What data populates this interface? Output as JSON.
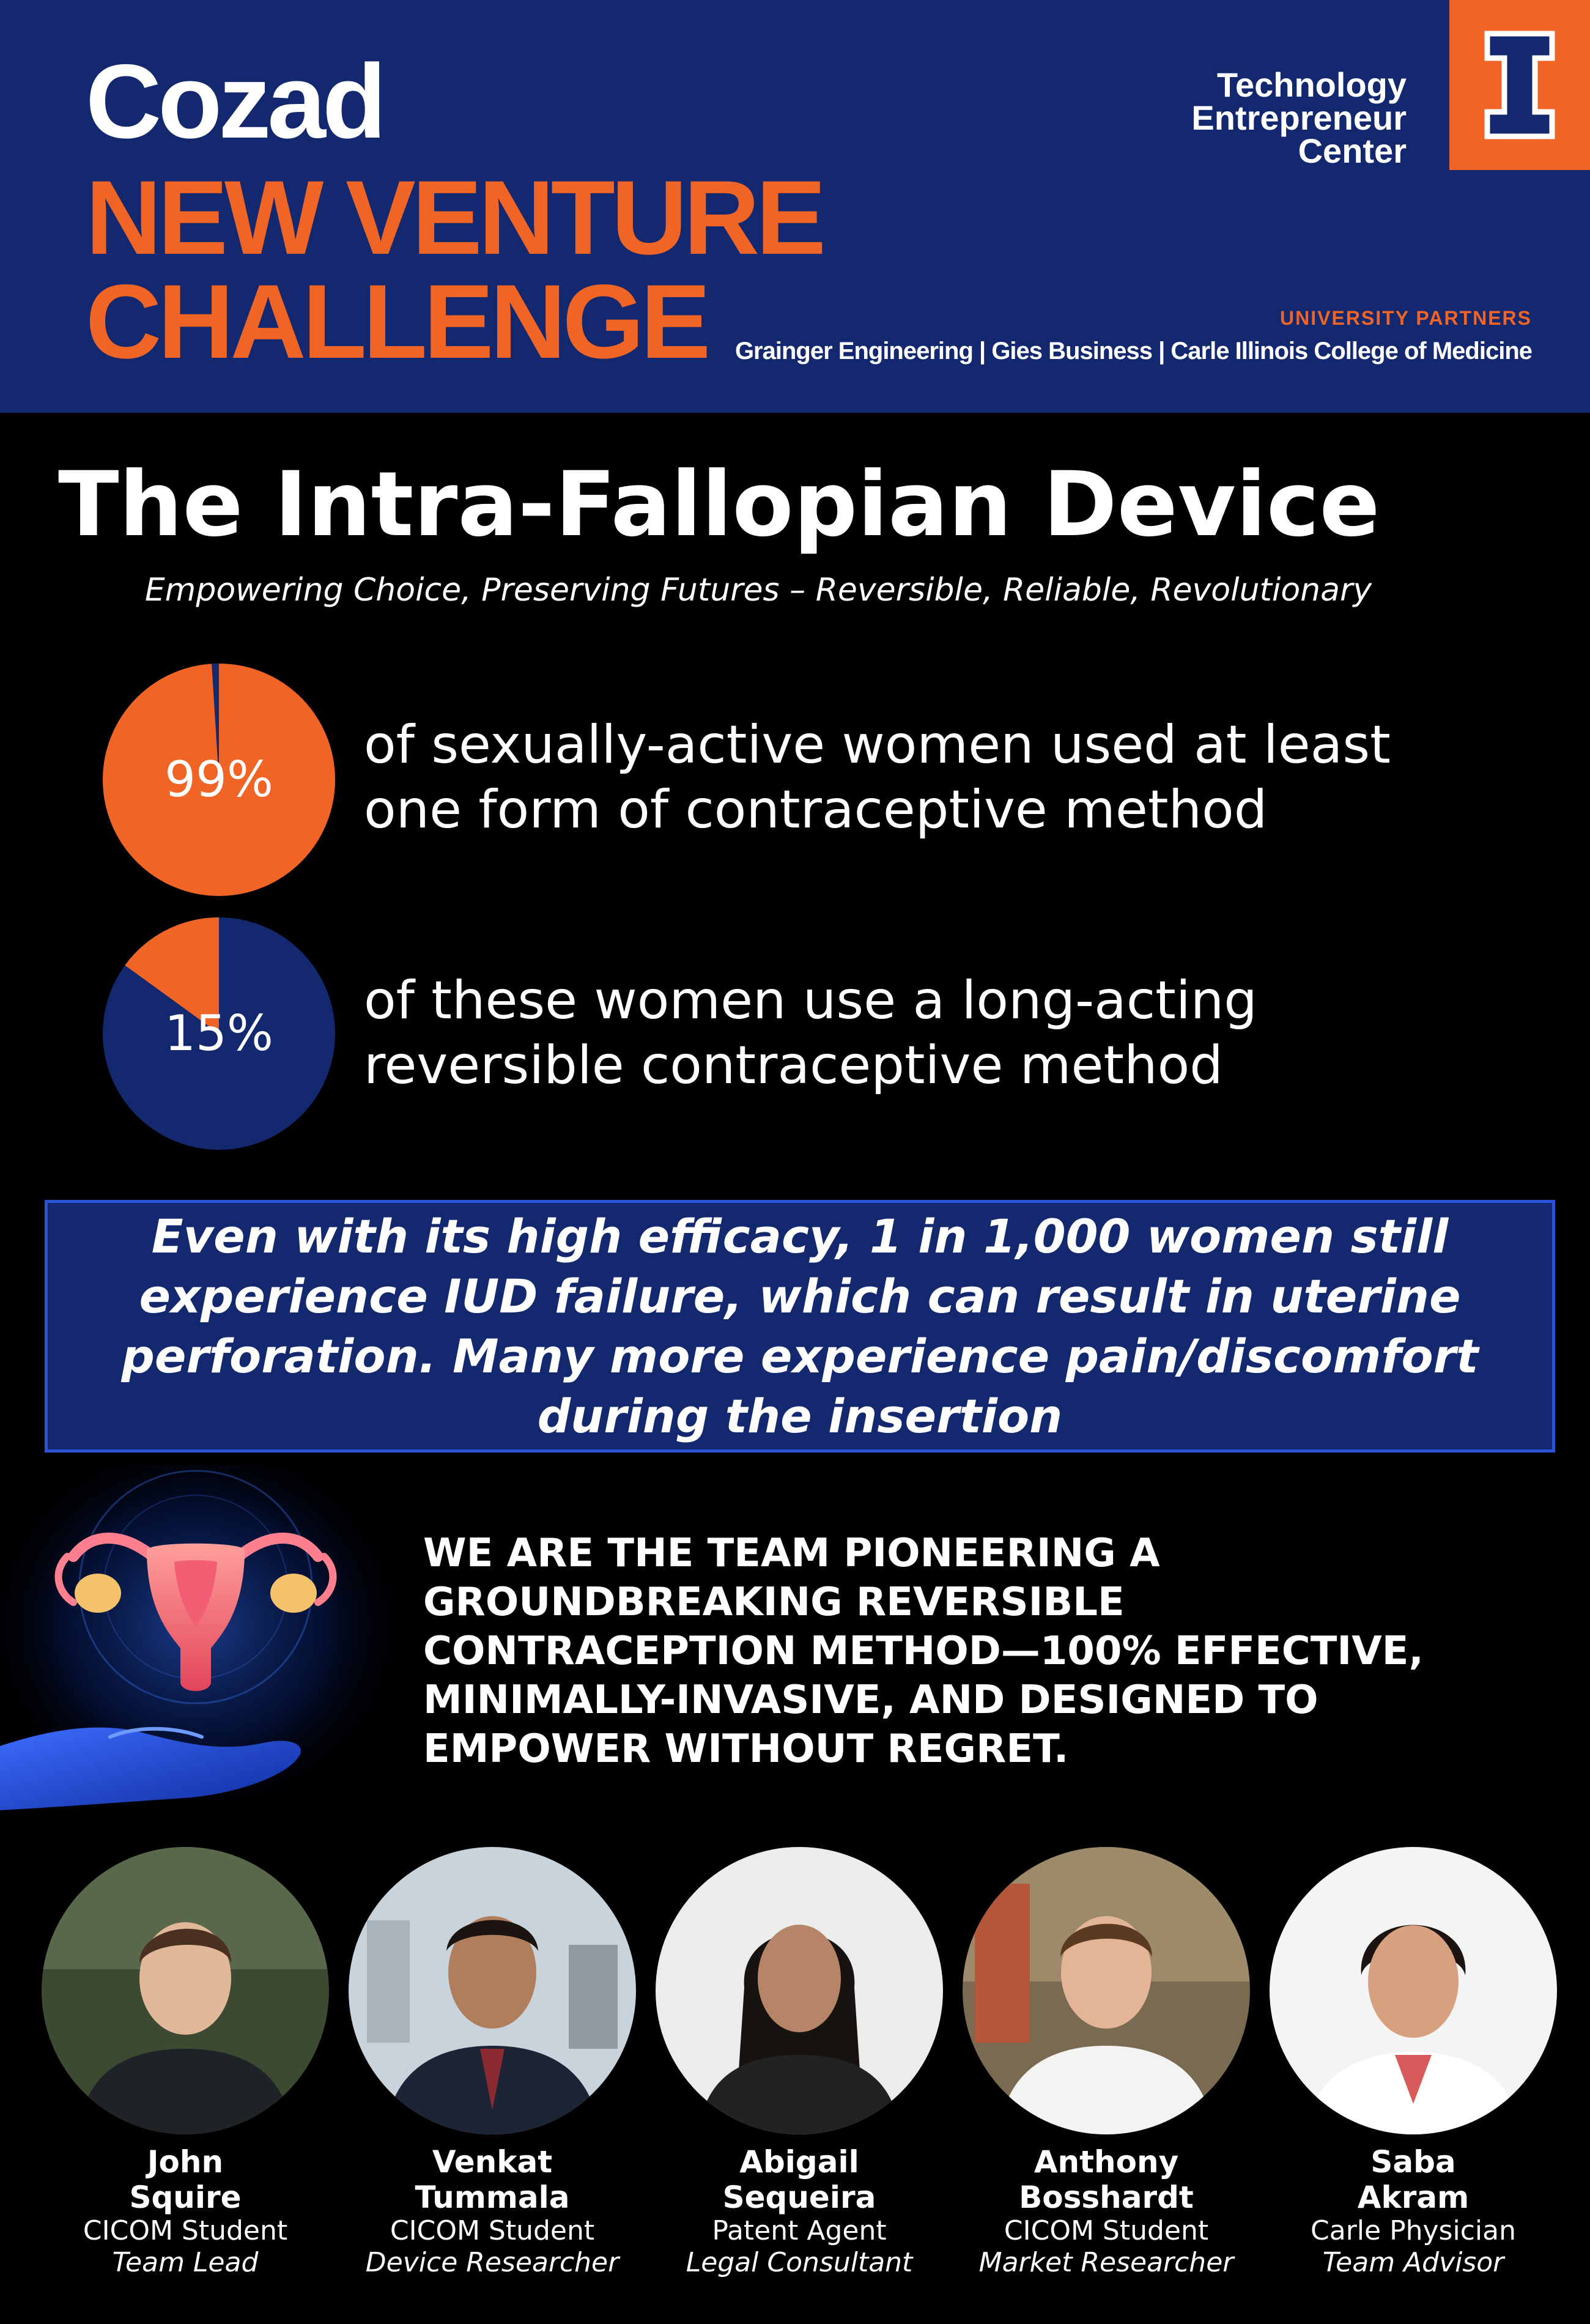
{
  "header": {
    "brand": "Cozad",
    "challenge_line1": "NEW VENTURE",
    "challenge_line2": "CHALLENGE",
    "center_line1": "Technology",
    "center_line2": "Entrepreneur",
    "center_line3": "Center",
    "logo_letter": "I",
    "partners_title": "UNIVERSITY PARTNERS",
    "partners_list": "Grainger Engineering | Gies Business | Carle Illinois College of Medicine"
  },
  "title": "The Intra-Fallopian Device",
  "tagline": "Empowering Choice, Preserving Futures – Reversible, Reliable, Revolutionary",
  "stats": [
    {
      "label": "99%",
      "percent": 99,
      "line1": "of sexually-active women used at least",
      "line2": "one form of contraceptive method"
    },
    {
      "label": "15%",
      "percent": 15,
      "line1": "of these women use a long-acting",
      "line2": "reversible contraceptive method"
    }
  ],
  "callout": {
    "line1": "Even with its high efficacy, 1 in 1,000 women still",
    "line2": "experience IUD failure, which can result in uterine",
    "line3": "perforation. Many more experience pain/discomfort",
    "line4": "during the insertion"
  },
  "mission": {
    "line1": "WE ARE THE TEAM PIONEERING A",
    "line2": "GROUNDBREAKING REVERSIBLE",
    "line3": "CONTRACEPTION METHOD—100% EFFECTIVE,",
    "line4": "MINIMALLY-INVASIVE, AND DESIGNED TO",
    "line5": "EMPOWER WITHOUT REGRET."
  },
  "team": [
    {
      "first": "John",
      "last": "Squire",
      "role": "CICOM Student",
      "title": "Team Lead"
    },
    {
      "first": "Venkat",
      "last": "Tummala",
      "role": "CICOM Student",
      "title": "Device Researcher"
    },
    {
      "first": "Abigail",
      "last": "Sequeira",
      "role": "Patent Agent",
      "title": "Legal Consultant"
    },
    {
      "first": "Anthony",
      "last": "Bosshardt",
      "role": "CICOM Student",
      "title": "Market Researcher"
    },
    {
      "first": "Saba",
      "last": "Akram",
      "role": "Carle Physician",
      "title": "Team Advisor"
    }
  ],
  "colors": {
    "navy": "#13286e",
    "orange": "#f06425",
    "callout_border": "#2a55d8",
    "background": "#000000"
  }
}
